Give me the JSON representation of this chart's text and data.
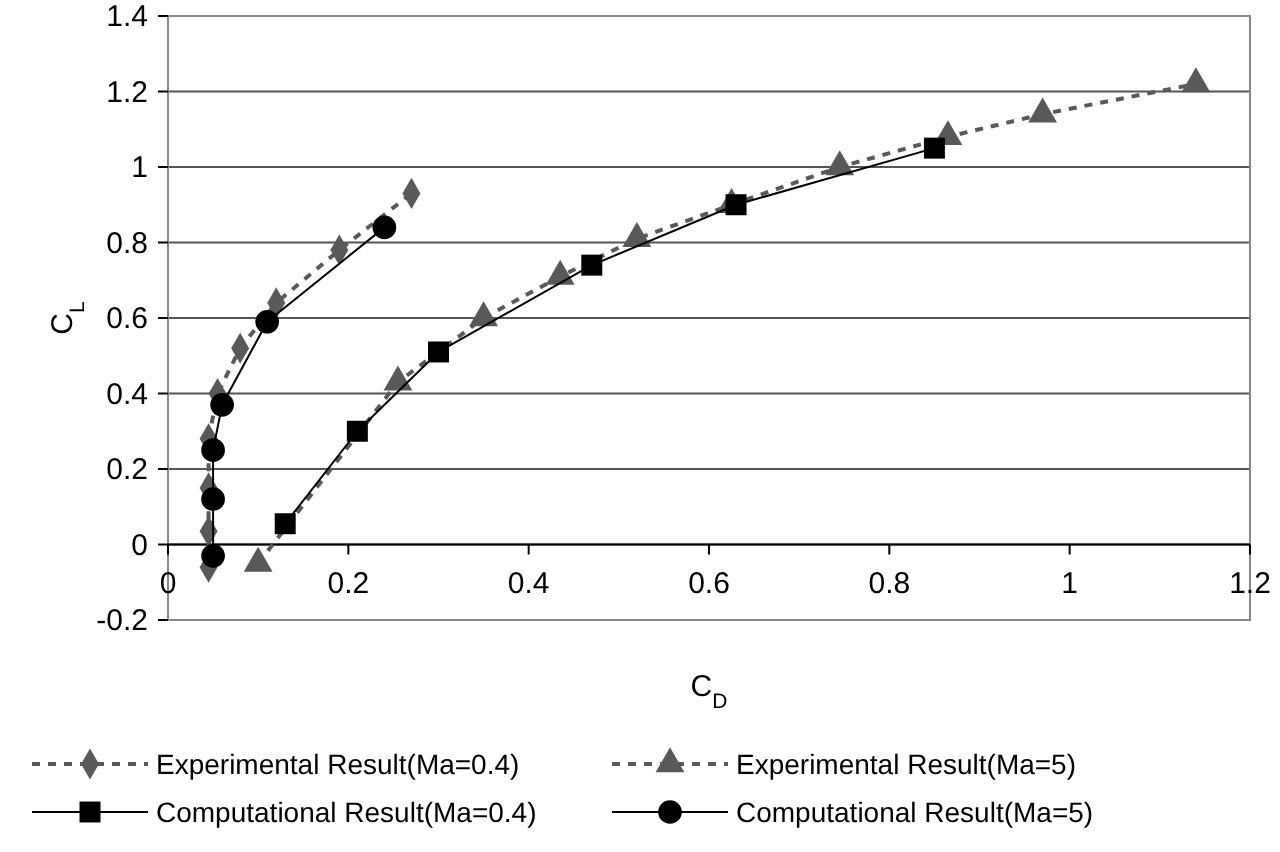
{
  "chart_data": {
    "type": "line",
    "xlabel": "C$_{D}$",
    "ylabel": "C$_{L}$",
    "xlim": [
      0,
      1.2
    ],
    "xticks": [
      0,
      0.2,
      0.4,
      0.6,
      0.8,
      1,
      1.2
    ],
    "ylim": [
      -0.2,
      1.4
    ],
    "yticks": [
      -0.2,
      0,
      0.2,
      0.4,
      0.6,
      0.8,
      1,
      1.2,
      1.4
    ],
    "grid": "y",
    "legend": "bottom",
    "series": [
      {
        "name": "Experimental Result(Ma=0.4)",
        "color": "#595959",
        "marker": "diamond",
        "line_style": "dashed",
        "x": [
          0.045,
          0.045,
          0.045,
          0.045,
          0.055,
          0.08,
          0.12,
          0.19,
          0.27
        ],
        "values": [
          -0.06,
          0.035,
          0.15,
          0.28,
          0.4,
          0.52,
          0.64,
          0.78,
          0.93
        ]
      },
      {
        "name": "Experimental Result(Ma=5)",
        "color": "#595959",
        "marker": "triangle",
        "line_style": "dashed",
        "x": [
          0.1,
          0.255,
          0.35,
          0.435,
          0.52,
          0.625,
          0.745,
          0.865,
          0.97,
          1.14
        ],
        "values": [
          -0.05,
          0.43,
          0.6,
          0.71,
          0.81,
          0.9,
          1.0,
          1.08,
          1.14,
          1.22
        ]
      },
      {
        "name": "Computational Result(Ma=0.4)",
        "color": "#000000",
        "marker": "square",
        "line_style": "solid",
        "x": [
          0.13,
          0.21,
          0.3,
          0.47,
          0.63,
          0.85
        ],
        "values": [
          0.055,
          0.3,
          0.51,
          0.74,
          0.9,
          1.05
        ]
      },
      {
        "name": "Computational Result(Ma=5)",
        "color": "#000000",
        "marker": "circle",
        "line_style": "solid",
        "x": [
          0.05,
          0.05,
          0.05,
          0.06,
          0.11,
          0.24
        ],
        "values": [
          -0.03,
          0.12,
          0.25,
          0.37,
          0.59,
          0.84
        ]
      }
    ]
  }
}
